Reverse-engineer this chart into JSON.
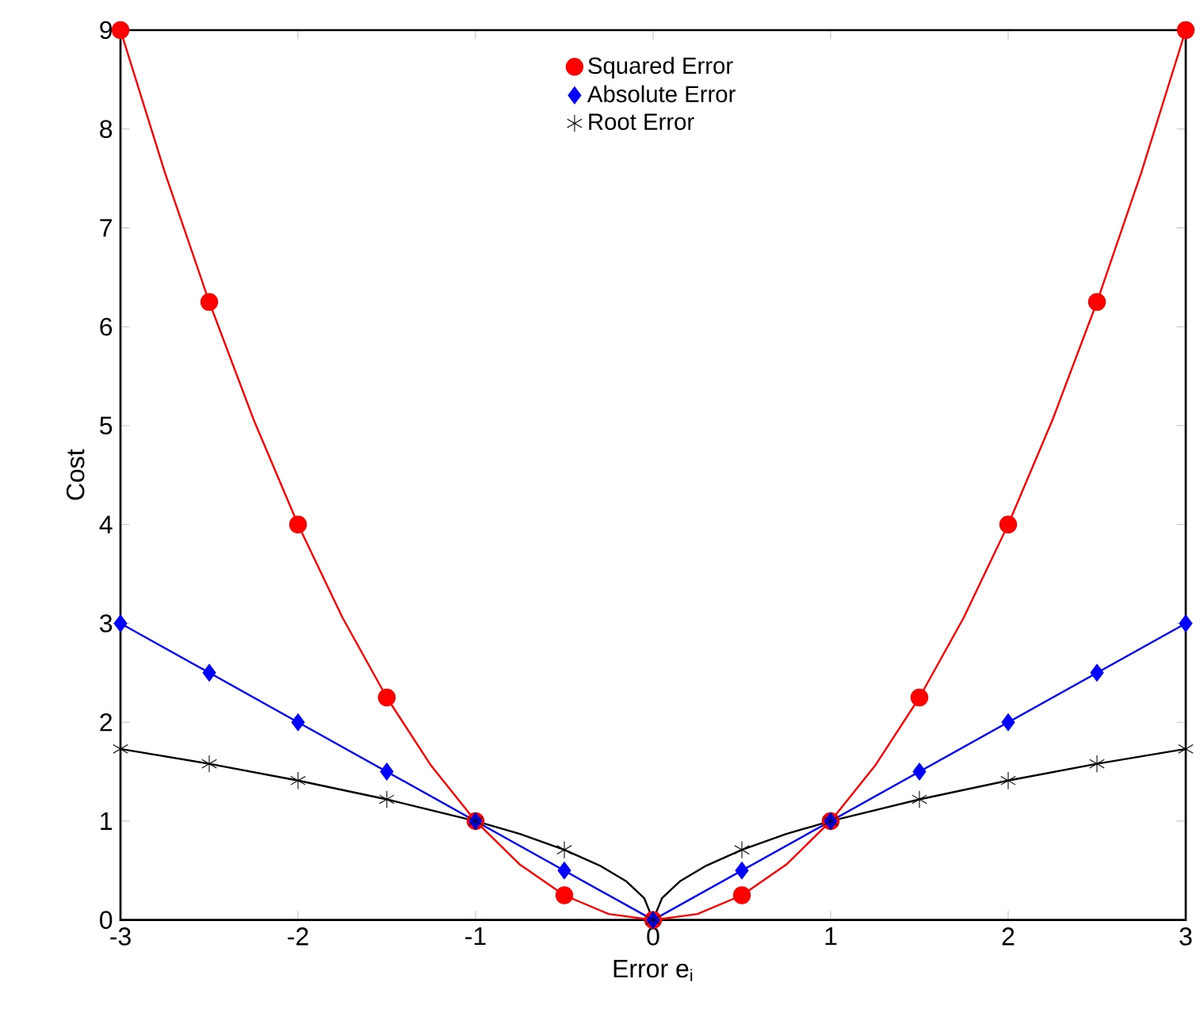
{
  "chart_data": {
    "type": "line",
    "xlabel": "Error e$_{i}$",
    "ylabel": "Cost",
    "xlim": [
      -3,
      3
    ],
    "ylim": [
      0,
      9
    ],
    "xticks": [
      -3,
      -2,
      -1,
      0,
      1,
      2,
      3
    ],
    "yticks": [
      0,
      1,
      2,
      3,
      4,
      5,
      6,
      7,
      8,
      9
    ],
    "grid": false,
    "legend": "top",
    "series": [
      {
        "name": "Squared Error",
        "type": "scatter",
        "marker": "circle",
        "color": "#ff0000",
        "x": [
          -3,
          -2.5,
          -2,
          -1.5,
          -1,
          -0.5,
          0,
          0.5,
          1,
          1.5,
          2,
          2.5,
          3
        ],
        "values": [
          9,
          6.25,
          4,
          2.25,
          1,
          0.25,
          0,
          0.25,
          1,
          2.25,
          4,
          6.25,
          9
        ]
      },
      {
        "name": "Absolute Error",
        "type": "scatter",
        "marker": "diamond",
        "color": "#0000ff",
        "x": [
          -3,
          -2.5,
          -2,
          -1.5,
          -1,
          -0.5,
          0,
          0.5,
          1,
          1.5,
          2,
          2.5,
          3
        ],
        "values": [
          3,
          2.5,
          2,
          1.5,
          1,
          0.5,
          0,
          0.5,
          1,
          1.5,
          2,
          2.5,
          3
        ]
      },
      {
        "name": "Root Error",
        "type": "scatter",
        "marker": "cross",
        "color": "#000000",
        "x": [
          -3,
          -2.5,
          -2,
          -1.5,
          -1,
          -0.5,
          0,
          0.5,
          1,
          1.5,
          2,
          2.5,
          3
        ],
        "values": [
          1.73,
          1.58,
          1.41,
          1.22,
          1,
          0.71,
          0,
          0.71,
          1,
          1.22,
          1.41,
          1.58,
          1.73
        ]
      },
      {
        "color": "#ff0000",
        "x": [
          -3,
          -2.75,
          -2.5,
          -2.25,
          -2,
          -1.75,
          -1.5,
          -1.25,
          -1,
          -0.75,
          -0.5,
          -0.25,
          0,
          0.25,
          0.5,
          0.75,
          1,
          1.25,
          1.5,
          1.75,
          2,
          2.25,
          2.5,
          2.75,
          3
        ],
        "values": [
          9,
          7.56,
          6.25,
          5.06,
          4,
          3.06,
          2.25,
          1.56,
          1,
          0.56,
          0.25,
          0.06,
          0,
          0.06,
          0.25,
          0.56,
          1,
          1.56,
          2.25,
          3.06,
          4,
          5.06,
          6.25,
          7.56,
          9
        ]
      },
      {
        "color": "#0000ff",
        "x": [
          -3,
          -2,
          -1,
          0,
          1,
          2,
          3
        ],
        "values": [
          3,
          2,
          1,
          0,
          1,
          2,
          3
        ]
      },
      {
        "color": "#000000",
        "x": [
          -3,
          -2.5,
          -2,
          -1.5,
          -1,
          -0.75,
          -0.5,
          -0.3,
          -0.15,
          -0.05,
          0,
          0.05,
          0.15,
          0.3,
          0.5,
          0.75,
          1,
          1.5,
          2,
          2.5,
          3
        ],
        "values": [
          1.73,
          1.58,
          1.41,
          1.22,
          1,
          0.87,
          0.71,
          0.55,
          0.39,
          0.22,
          0,
          0.22,
          0.39,
          0.55,
          0.71,
          0.87,
          1,
          1.22,
          1.41,
          1.58,
          1.73
        ]
      }
    ]
  }
}
